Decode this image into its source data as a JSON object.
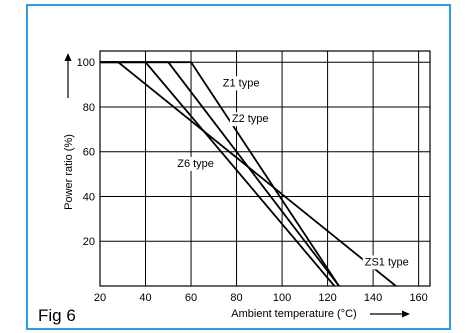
{
  "figure": {
    "label": "Fig 6",
    "title": "",
    "accent_color": "#2a9be6"
  },
  "chart_data": {
    "type": "line",
    "title": "",
    "xlabel": "Ambient temperature (°C)",
    "ylabel": "Power ratio (%)",
    "xlim": [
      20,
      165
    ],
    "ylim": [
      0,
      105
    ],
    "x_ticks": [
      20,
      40,
      60,
      80,
      100,
      120,
      140,
      160
    ],
    "y_ticks": [
      20,
      40,
      60,
      80,
      100
    ],
    "grid": true,
    "series": [
      {
        "name": "Z1 type",
        "x": [
          20,
          60,
          125
        ],
        "y": [
          100,
          100,
          0
        ]
      },
      {
        "name": "Z2 type",
        "x": [
          20,
          50,
          125
        ],
        "y": [
          100,
          100,
          0
        ]
      },
      {
        "name": "Z6 type",
        "x": [
          20,
          40,
          123
        ],
        "y": [
          100,
          100,
          0
        ]
      },
      {
        "name": "ZS1 type",
        "x": [
          20,
          28,
          150
        ],
        "y": [
          100,
          100,
          0
        ]
      }
    ],
    "annotations": [
      {
        "text": "Z1 type",
        "x": 82,
        "y": 91
      },
      {
        "text": "Z2 type",
        "x": 86,
        "y": 75
      },
      {
        "text": "Z6 type",
        "x": 62,
        "y": 55
      },
      {
        "text": "ZS1 type",
        "x": 146,
        "y": 11
      }
    ]
  }
}
